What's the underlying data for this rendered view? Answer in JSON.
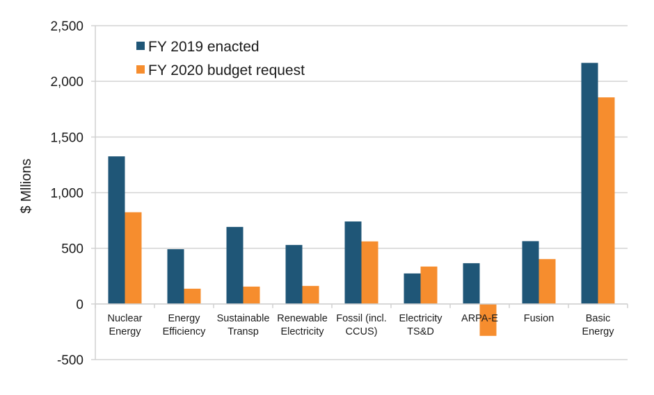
{
  "chart_data": {
    "type": "bar",
    "title": "",
    "xlabel": "",
    "ylabel": "$ Mllions",
    "ylim": [
      -500,
      2500
    ],
    "yticks": [
      -500,
      0,
      500,
      1000,
      1500,
      2000,
      2500
    ],
    "ytick_labels": [
      "-500",
      "0",
      "500",
      "1,000",
      "1,500",
      "2,000",
      "2,500"
    ],
    "grid": true,
    "legend_position": "top-left",
    "categories": [
      [
        "Nuclear",
        "Energy"
      ],
      [
        "Energy",
        "Efficiency"
      ],
      [
        "Sustainable",
        "Transp"
      ],
      [
        "Renewable",
        "Electricity"
      ],
      [
        "Fossil (incl.",
        "CCUS)"
      ],
      [
        "Electricity",
        "TS&D"
      ],
      [
        "ARPA-E"
      ],
      [
        "Fusion"
      ],
      [
        "Basic",
        "Energy"
      ]
    ],
    "series": [
      {
        "name": "FY 2019 enacted",
        "color": "#1f5677",
        "values": [
          1326,
          492,
          692,
          530,
          741,
          274,
          366,
          564,
          2166
        ]
      },
      {
        "name": "FY 2020 budget request",
        "color": "#f68d2e",
        "values": [
          824,
          137,
          156,
          162,
          562,
          336,
          -287,
          403,
          1856
        ]
      }
    ]
  }
}
